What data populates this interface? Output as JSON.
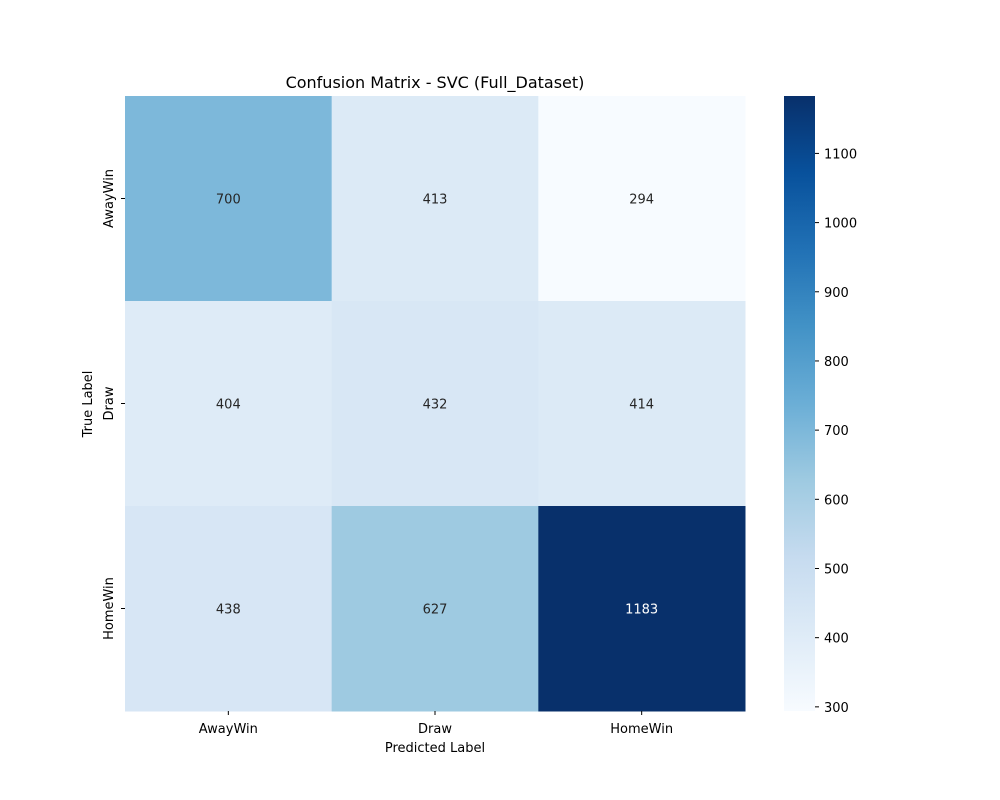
{
  "chart_data": {
    "type": "heatmap",
    "title": "Confusion Matrix - SVC (Full_Dataset)",
    "xlabel": "Predicted Label",
    "ylabel": "True Label",
    "x_categories": [
      "AwayWin",
      "Draw",
      "HomeWin"
    ],
    "y_categories": [
      "AwayWin",
      "Draw",
      "HomeWin"
    ],
    "values": [
      [
        700,
        413,
        294
      ],
      [
        404,
        432,
        414
      ],
      [
        438,
        627,
        1183
      ]
    ],
    "colorbar": {
      "range": [
        294,
        1183
      ],
      "ticks": [
        300,
        400,
        500,
        600,
        700,
        800,
        900,
        1000,
        1100
      ],
      "tick_labels": [
        "300",
        "400",
        "500",
        "600",
        "700",
        "800",
        "900",
        "1000",
        "1100"
      ],
      "colormap": "Blues"
    },
    "grid": false
  }
}
